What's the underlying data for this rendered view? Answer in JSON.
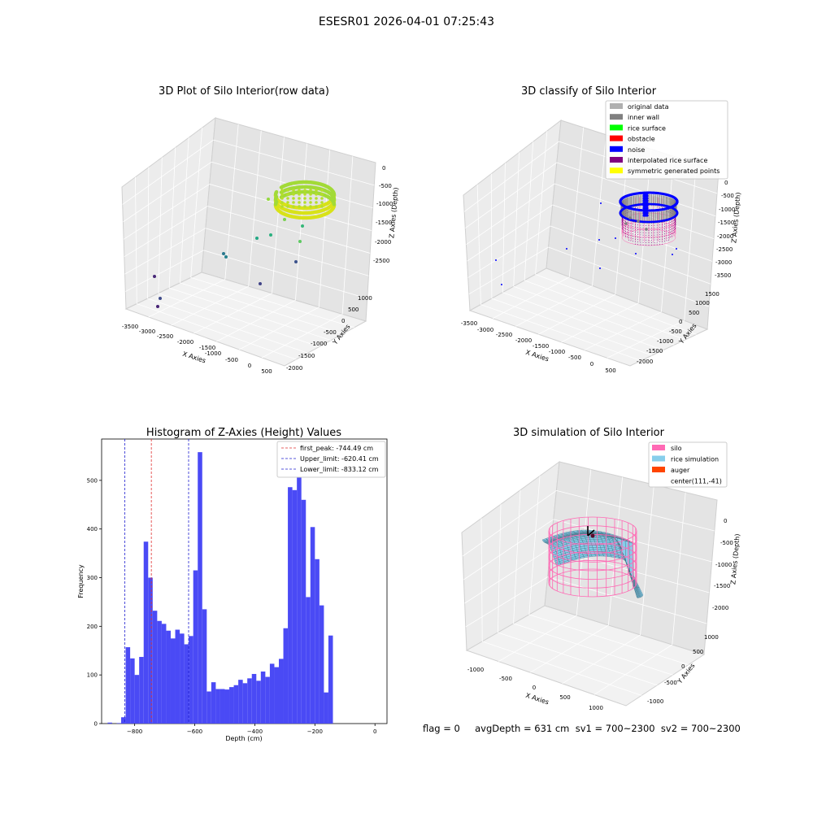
{
  "figure": {
    "suptitle": "ESESR01 2026-04-01 07:25:43"
  },
  "status_line": "flag = 0     avgDepth = 631 cm  sv1 = 700~2300  sv2 = 700~2300",
  "colors": {
    "hist_bar": "#4a4af5",
    "first_peak": "#e03030",
    "limit": "#2020d0",
    "silo": "#ff69b4",
    "rice_sim": "#87ceeb",
    "auger": "#ff4500",
    "original": "#b0b0b0",
    "inner_wall": "#808080",
    "rice_surface": "#00ff00",
    "obstacle": "#ff0000",
    "noise": "#0000ff",
    "interp": "#800080",
    "symmetric": "#ffff00"
  },
  "chart_data": [
    {
      "type": "scatter",
      "title": "3D Plot of Silo Interior(row data)",
      "xlabel": "X Axies",
      "ylabel": "Y Axies",
      "zlabel": "Z Axies (Depth)",
      "xticks": [
        "-3500",
        "-3000",
        "-2500",
        "-2000",
        "-1500",
        "-1000",
        "-500",
        "0",
        "500"
      ],
      "yticks": [
        "1000",
        "500",
        "0",
        "-500",
        "-1000",
        "-1500",
        "-2000"
      ],
      "zticks": [
        "0",
        "-500",
        "-1000",
        "-1500",
        "-2000",
        "-2500"
      ],
      "grid": true
    },
    {
      "type": "scatter",
      "title": "3D classify of Silo Interior",
      "xlabel": "X Axies",
      "ylabel": "Y Axies",
      "zlabel": "Z Axies (Depth)",
      "xticks": [
        "-3500",
        "-3000",
        "-2500",
        "-2000",
        "-1500",
        "-1000",
        "-500",
        "0",
        "500"
      ],
      "yticks": [
        "1500",
        "1000",
        "500",
        "0",
        "-500",
        "-1000",
        "-1500",
        "-2000"
      ],
      "zticks": [
        "0",
        "-500",
        "-1000",
        "-1500",
        "-2000",
        "-2500",
        "-3000",
        "-3500"
      ],
      "legend": [
        {
          "label": "original data",
          "color": "#b0b0b0"
        },
        {
          "label": "inner wall",
          "color": "#808080"
        },
        {
          "label": "rice surface",
          "color": "#00ff00"
        },
        {
          "label": "obstacle",
          "color": "#ff0000"
        },
        {
          "label": "noise",
          "color": "#0000ff"
        },
        {
          "label": "interpolated rice surface",
          "color": "#800080"
        },
        {
          "label": "symmetric generated points",
          "color": "#ffff00"
        }
      ],
      "legend_position": "top-right",
      "grid": true
    },
    {
      "type": "bar",
      "title": "Histogram of Z-Axies (Height) Values",
      "xlabel": "Depth (cm)",
      "ylabel": "Frequency",
      "xlim": [
        -910,
        40
      ],
      "ylim": [
        0,
        585
      ],
      "xticks": [
        -800,
        -600,
        -400,
        -200,
        0
      ],
      "yticks": [
        0,
        100,
        200,
        300,
        400,
        500
      ],
      "bin_start": -890,
      "bin_width": 15,
      "values": [
        2,
        0,
        1,
        13,
        157,
        134,
        100,
        137,
        374,
        300,
        232,
        211,
        205,
        191,
        175,
        193,
        185,
        163,
        180,
        315,
        558,
        235,
        66,
        85,
        71,
        71,
        70,
        75,
        79,
        90,
        83,
        93,
        102,
        88,
        107,
        96,
        123,
        116,
        133,
        196,
        486,
        480,
        508,
        460,
        260,
        404,
        338,
        243,
        64,
        181
      ],
      "vlines": [
        {
          "label": "first_peak: -744.49 cm",
          "x": -744.49,
          "color": "#e03030"
        },
        {
          "label": "Upper_limit: -620.41 cm",
          "x": -620.41,
          "color": "#2020d0"
        },
        {
          "label": "Lower_limit: -833.12 cm",
          "x": -833.12,
          "color": "#2020d0"
        }
      ],
      "legend_position": "top-right"
    },
    {
      "type": "surface",
      "title": "3D simulation of Silo Interior",
      "xlabel": "X Axies",
      "ylabel": "Y Axies",
      "zlabel": "Z Axies (Depth)",
      "xticks": [
        "-1000",
        "-500",
        "0",
        "500",
        "1000"
      ],
      "yticks": [
        "1000",
        "500",
        "0",
        "-500",
        "-1000"
      ],
      "zticks": [
        "0",
        "-500",
        "-1000",
        "-1500",
        "-2000"
      ],
      "legend": [
        {
          "label": "silo",
          "color": "#ff69b4"
        },
        {
          "label": "rice simulation",
          "color": "#87ceeb"
        },
        {
          "label": "auger",
          "color": "#ff4500"
        },
        {
          "label": "center(111,-41)",
          "color": ""
        }
      ],
      "legend_position": "top-right",
      "grid": true
    }
  ]
}
